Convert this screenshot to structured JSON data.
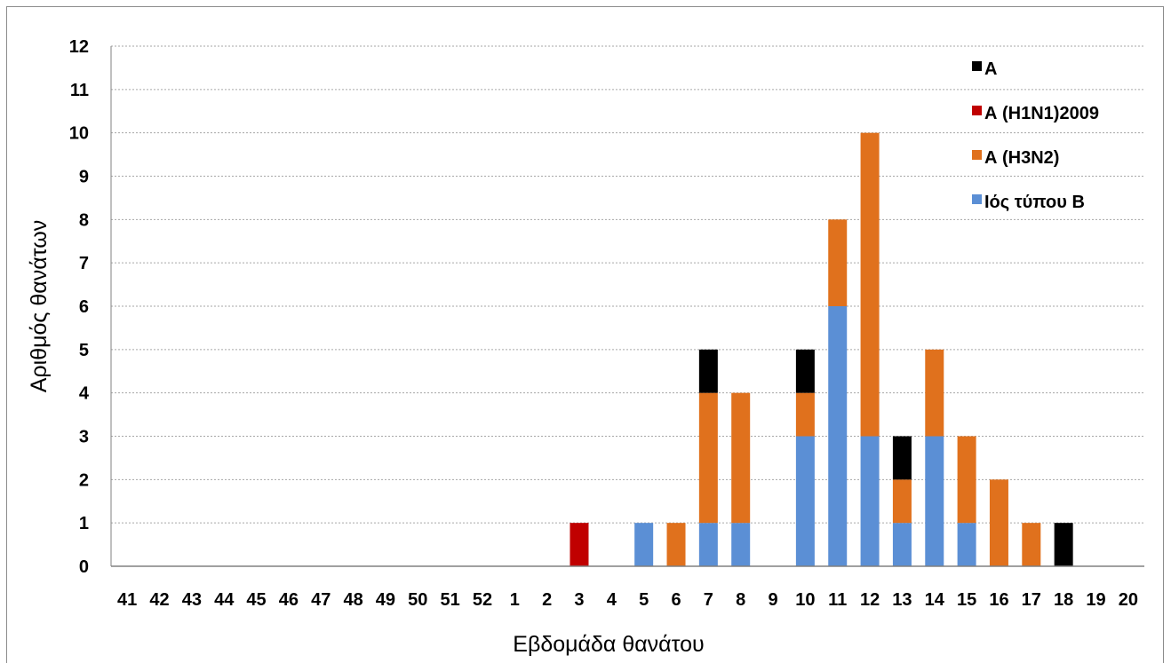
{
  "chart_data": {
    "type": "bar",
    "stacked": true,
    "title": "",
    "xlabel": "Εβδομάδα θανάτου",
    "ylabel": "Αριθμός θανάτων",
    "ylim": [
      0,
      12
    ],
    "yticks": [
      0,
      1,
      2,
      3,
      4,
      5,
      6,
      7,
      8,
      9,
      10,
      11,
      12
    ],
    "grid": true,
    "legend_position": "top-right",
    "categories": [
      "41",
      "42",
      "43",
      "44",
      "45",
      "46",
      "47",
      "48",
      "49",
      "50",
      "51",
      "52",
      "1",
      "2",
      "3",
      "4",
      "5",
      "6",
      "7",
      "8",
      "9",
      "10",
      "11",
      "12",
      "13",
      "14",
      "15",
      "16",
      "17",
      "18",
      "19",
      "20"
    ],
    "series": [
      {
        "name": "Ιός τύπου Β",
        "color": "#5b8fd5",
        "values": [
          0,
          0,
          0,
          0,
          0,
          0,
          0,
          0,
          0,
          0,
          0,
          0,
          0,
          0,
          0,
          0,
          1,
          0,
          1,
          1,
          0,
          3,
          6,
          3,
          1,
          3,
          1,
          0,
          0,
          0,
          0,
          0
        ]
      },
      {
        "name": "Α (Η3Ν2)",
        "color": "#e0711d",
        "values": [
          0,
          0,
          0,
          0,
          0,
          0,
          0,
          0,
          0,
          0,
          0,
          0,
          0,
          0,
          0,
          0,
          0,
          1,
          3,
          3,
          0,
          1,
          2,
          7,
          1,
          2,
          2,
          2,
          1,
          0,
          0,
          0
        ]
      },
      {
        "name": "Α (Η1Ν1)2009",
        "color": "#c00000",
        "values": [
          0,
          0,
          0,
          0,
          0,
          0,
          0,
          0,
          0,
          0,
          0,
          0,
          0,
          0,
          1,
          0,
          0,
          0,
          0,
          0,
          0,
          0,
          0,
          0,
          0,
          0,
          0,
          0,
          0,
          0,
          0,
          0
        ]
      },
      {
        "name": "Α",
        "color": "#000000",
        "values": [
          0,
          0,
          0,
          0,
          0,
          0,
          0,
          0,
          0,
          0,
          0,
          0,
          0,
          0,
          0,
          0,
          0,
          0,
          1,
          0,
          0,
          1,
          0,
          0,
          1,
          0,
          0,
          0,
          0,
          1,
          0,
          0
        ]
      }
    ],
    "legend_order": [
      "Α",
      "Α (Η1Ν1)2009",
      "Α (Η3Ν2)",
      "Ιός τύπου Β"
    ]
  }
}
